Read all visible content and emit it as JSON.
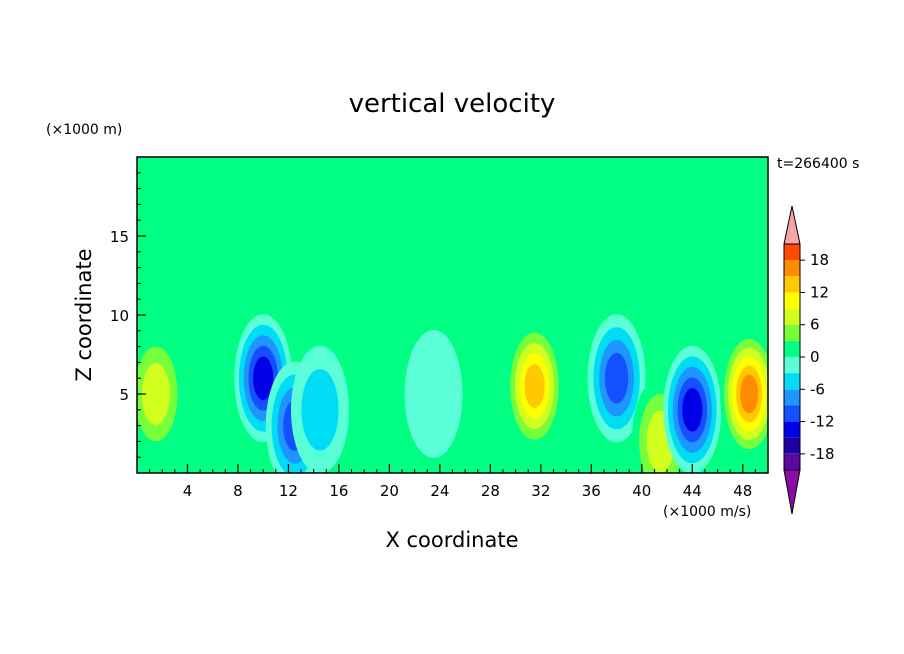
{
  "chart_data": {
    "type": "heatmap",
    "title": "vertical velocity",
    "xlabel": "X coordinate",
    "ylabel": "Z coordinate",
    "x_unit": "(×1000 m/s)",
    "y_unit": "(×1000 m)",
    "time_label": "t=266400 s",
    "xlim": [
      0,
      50
    ],
    "ylim": [
      0,
      20
    ],
    "x_ticks": [
      4,
      8,
      12,
      16,
      20,
      24,
      28,
      32,
      36,
      40,
      44,
      48
    ],
    "x_tick_labels": [
      "4",
      "8",
      "12",
      "16",
      "20",
      "24",
      "28",
      "32",
      "36",
      "40",
      "44",
      "48"
    ],
    "y_ticks": [
      5,
      10,
      15
    ],
    "y_tick_labels": [
      "5",
      "10",
      "15"
    ],
    "colorbar": {
      "levels": [
        -21,
        -18,
        -15,
        -12,
        -9,
        -6,
        -3,
        0,
        3,
        6,
        9,
        12,
        15,
        18,
        21
      ],
      "tick_values": [
        18,
        12,
        6,
        0,
        -6,
        -12,
        -18
      ],
      "tick_labels": [
        "18",
        "12",
        "6",
        "0",
        "-6",
        "-12",
        "-18"
      ],
      "colors": [
        "#5a0aa0",
        "#1e00a0",
        "#0000e6",
        "#1450ff",
        "#1e96ff",
        "#00dcf5",
        "#5affd7",
        "#00ff82",
        "#78ff3c",
        "#d2ff1e",
        "#ffff00",
        "#ffc800",
        "#ff8c00",
        "#ff4b00",
        "#f01414"
      ],
      "under_color": "#8c0aa5",
      "over_color": "#f5a5a5"
    },
    "features": [
      {
        "x": 1.5,
        "z": 5.0,
        "w": 9
      },
      {
        "x": 10.0,
        "z": 6.0,
        "w": -14
      },
      {
        "x": 12.5,
        "z": 3.0,
        "w": -10
      },
      {
        "x": 14.5,
        "z": 4.0,
        "w": -6
      },
      {
        "x": 23.5,
        "z": 5.0,
        "w": -3
      },
      {
        "x": 31.5,
        "z": 5.5,
        "w": 14
      },
      {
        "x": 38.0,
        "z": 6.0,
        "w": -12
      },
      {
        "x": 41.5,
        "z": 2.0,
        "w": 8
      },
      {
        "x": 44.0,
        "z": 4.0,
        "w": -15
      },
      {
        "x": 48.5,
        "z": 5.0,
        "w": 16
      }
    ]
  }
}
